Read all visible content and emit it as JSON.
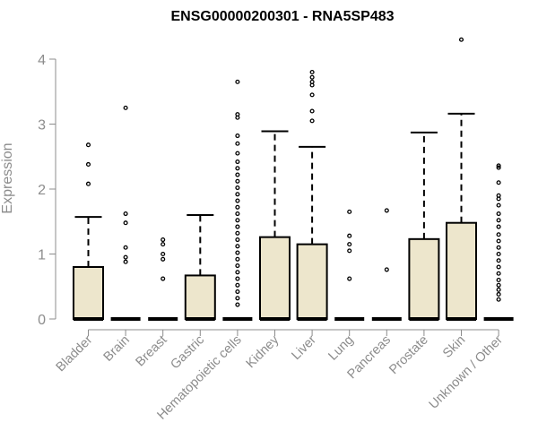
{
  "chart_data": {
    "type": "boxplot",
    "title": "ENSG00000200301 - RNA5SP483",
    "xlabel": "",
    "ylabel": "Expression",
    "ylim": [
      0,
      4.4
    ],
    "yticks": [
      0,
      1,
      2,
      3,
      4
    ],
    "grid": false,
    "box_fill": "#ede6cc",
    "categories": [
      "Bladder",
      "Brain",
      "Breast",
      "Gastric",
      "Hematopoietic cells",
      "Kidney",
      "Liver",
      "Lung",
      "Pancreas",
      "Prostate",
      "Skin",
      "Unknown / Other"
    ],
    "boxes": [
      {
        "min": 0,
        "q1": 0,
        "median": 0,
        "q3": 0.8,
        "max": 1.57,
        "outliers": [
          2.08,
          2.38,
          2.68
        ]
      },
      {
        "min": 0,
        "q1": 0,
        "median": 0,
        "q3": 0,
        "max": 0,
        "outliers": [
          0.88,
          0.95,
          1.1,
          1.48,
          1.62,
          3.25
        ]
      },
      {
        "min": 0,
        "q1": 0,
        "median": 0,
        "q3": 0,
        "max": 0,
        "outliers": [
          0.62,
          0.92,
          1.0,
          1.15,
          1.22
        ]
      },
      {
        "min": 0,
        "q1": 0,
        "median": 0,
        "q3": 0.67,
        "max": 1.6,
        "outliers": []
      },
      {
        "min": 0,
        "q1": 0,
        "median": 0,
        "q3": 0,
        "max": 0,
        "outliers": [
          0.22,
          0.32,
          0.42,
          0.52,
          0.62,
          0.72,
          0.82,
          0.92,
          1.02,
          1.12,
          1.22,
          1.32,
          1.42,
          1.52,
          1.62,
          1.72,
          1.82,
          1.92,
          2.02,
          2.12,
          2.22,
          2.32,
          2.42,
          2.55,
          2.7,
          2.82,
          3.1,
          3.15,
          3.65
        ]
      },
      {
        "min": 0,
        "q1": 0,
        "median": 0,
        "q3": 1.26,
        "max": 2.89,
        "outliers": []
      },
      {
        "min": 0,
        "q1": 0,
        "median": 0,
        "q3": 1.15,
        "max": 2.65,
        "outliers": [
          3.05,
          3.2,
          3.45,
          3.6,
          3.65,
          3.72,
          3.8
        ]
      },
      {
        "min": 0,
        "q1": 0,
        "median": 0,
        "q3": 0,
        "max": 0,
        "outliers": [
          0.62,
          1.05,
          1.15,
          1.28,
          1.65
        ]
      },
      {
        "min": 0,
        "q1": 0,
        "median": 0,
        "q3": 0,
        "max": 0,
        "outliers": [
          0.76,
          1.67
        ]
      },
      {
        "min": 0,
        "q1": 0,
        "median": 0,
        "q3": 1.23,
        "max": 2.87,
        "outliers": []
      },
      {
        "min": 0,
        "q1": 0,
        "median": 0,
        "q3": 1.48,
        "max": 3.16,
        "outliers": [
          4.3
        ]
      },
      {
        "min": 0,
        "q1": 0,
        "median": 0,
        "q3": 0,
        "max": 0,
        "outliers": [
          0.3,
          0.38,
          0.45,
          0.52,
          0.6,
          0.7,
          0.8,
          0.9,
          1.0,
          1.1,
          1.2,
          1.3,
          1.42,
          1.52,
          1.62,
          1.75,
          1.85,
          1.9,
          2.1,
          2.33,
          2.36
        ]
      }
    ]
  }
}
